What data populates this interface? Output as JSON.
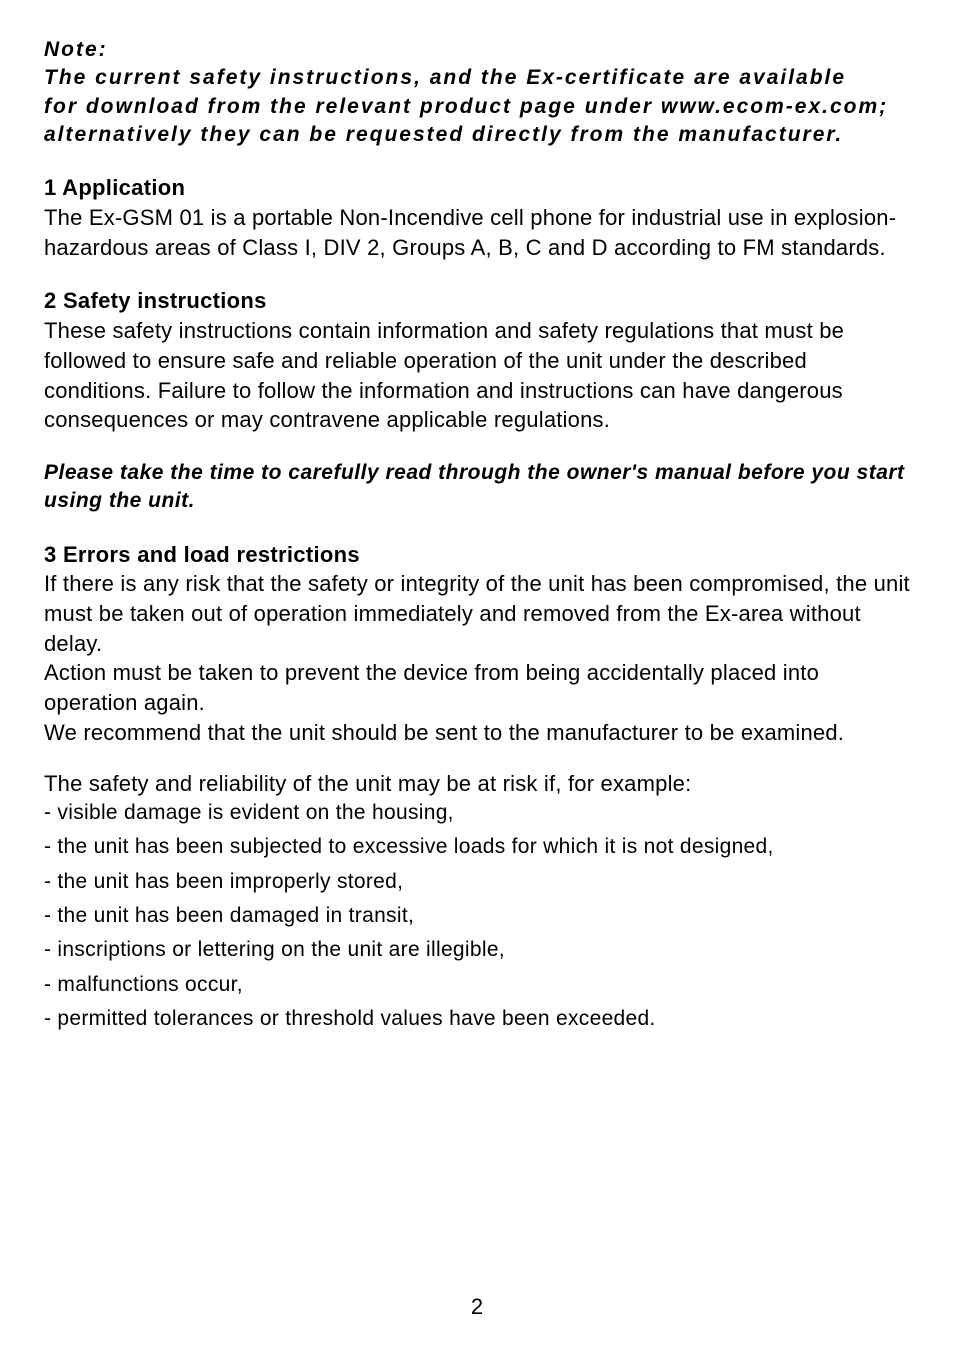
{
  "note": {
    "label": "Note:",
    "line1": "The current safety instructions, and the Ex-certificate are available",
    "line2": "for download from the relevant product page under www.ecom-ex.com;",
    "line3": "alternatively they can be requested directly from the manufacturer."
  },
  "section1": {
    "heading": "1 Application",
    "body": "The Ex-GSM 01 is a portable Non-Incendive cell phone for industrial use in explosion-hazardous areas of Class I, DIV 2, Groups A, B, C and D according to FM standards."
  },
  "section2": {
    "heading": "2 Safety instructions",
    "body": "These safety instructions contain information and safety regulations that must be followed to ensure safe and reliable operation of the unit under the described conditions. Failure to follow the information and instructions can have dangerous consequences or may contravene applicable regulations."
  },
  "emphasis": "Please take the time to carefully read through the owner's manual before you start using the unit.",
  "section3": {
    "heading": "3 Errors and load restrictions",
    "p1": "If there is any risk that the safety or integrity of the unit has been compromised, the unit must be taken out of operation immediately and removed from the Ex-area without delay.",
    "p2": "Action must be taken to prevent the device from being accidentally placed into operation again.",
    "p3": "We recommend that the unit should be sent to the manufacturer to be examined.",
    "intro": "The safety and reliability of the unit may be at risk if, for example:",
    "bullets": [
      "- visible damage is evident on the housing,",
      "- the unit has been subjected to excessive loads for which it is not designed,",
      "- the unit has been improperly stored,",
      "- the unit has been damaged in transit,",
      "- inscriptions or lettering on the unit are illegible,",
      "- malfunctions occur,",
      "- permitted tolerances or threshold values have been exceeded."
    ]
  },
  "page_number": "2"
}
